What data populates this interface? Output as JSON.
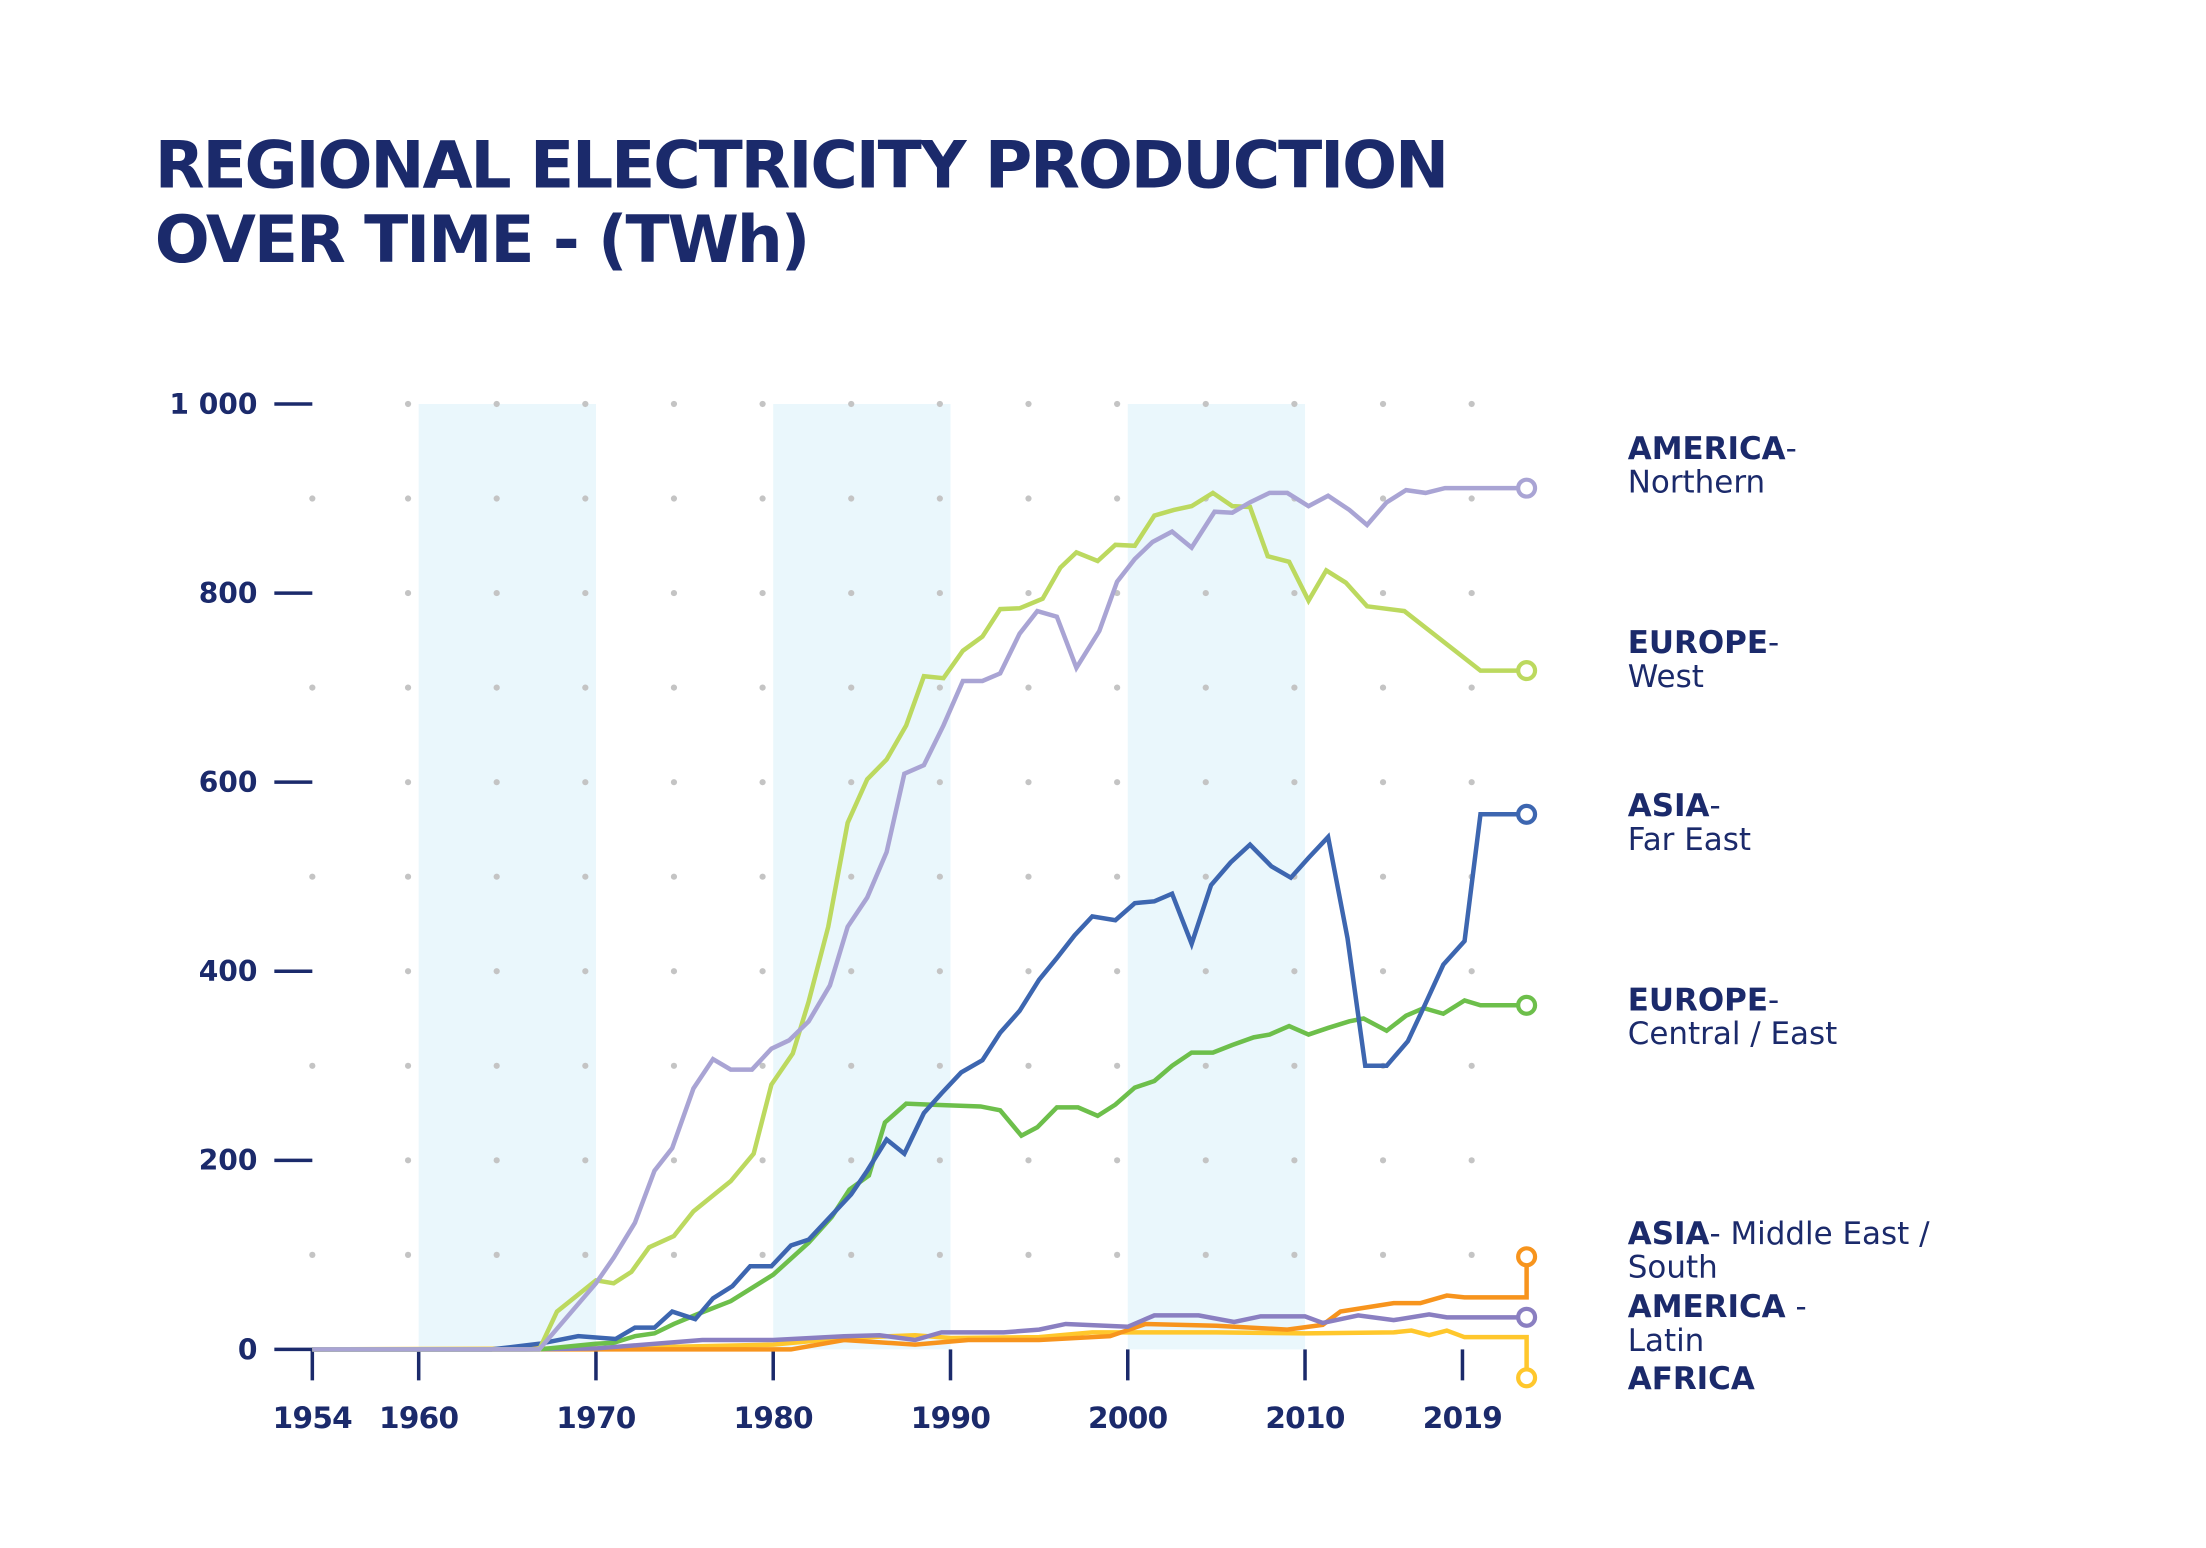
{
  "chart_data": {
    "type": "line",
    "title_lines": [
      "REGIONAL ELECTRICITY PRODUCTION",
      "OVER TIME  - (TWh)"
    ],
    "xlabel": "",
    "ylabel": "",
    "xlim": [
      1954,
      2019
    ],
    "ylim": [
      0,
      1000
    ],
    "x_ticks": [
      1954,
      1960,
      1970,
      1980,
      1990,
      2000,
      2010,
      2019
    ],
    "y_ticks": [
      0,
      200,
      400,
      600,
      800,
      1000
    ],
    "y_tick_labels": [
      "0",
      "200",
      "400",
      "600",
      "800",
      "1 000"
    ],
    "grid": "dotted",
    "shaded_decades": [
      [
        1960,
        1970
      ],
      [
        1980,
        1990
      ],
      [
        2000,
        2010
      ]
    ],
    "legend_placement": "right (direct labels at line ends)",
    "series": [
      {
        "name": "AMERICA- Northern",
        "label_bold": "AMERICA",
        "label_rest": "-",
        "label_line2": "Northern",
        "color": "#a9a4d4",
        "end_value": 911,
        "points": [
          [
            1954,
            0
          ],
          [
            1966.8,
            0
          ],
          [
            1970,
            70
          ],
          [
            1971,
            97
          ],
          [
            1972.2,
            134
          ],
          [
            1973.3,
            189
          ],
          [
            1974.3,
            213
          ],
          [
            1975.5,
            276
          ],
          [
            1976.6,
            307
          ],
          [
            1977.6,
            296
          ],
          [
            1978.8,
            296
          ],
          [
            1979.9,
            318
          ],
          [
            1980.9,
            327
          ],
          [
            1982,
            347
          ],
          [
            1983.2,
            385
          ],
          [
            1984.2,
            447
          ],
          [
            1985.3,
            478
          ],
          [
            1986.4,
            526
          ],
          [
            1987.4,
            609
          ],
          [
            1988.5,
            618
          ],
          [
            1989.6,
            660
          ],
          [
            1990.7,
            707
          ],
          [
            1991.8,
            707
          ],
          [
            1992.8,
            715
          ],
          [
            1993.9,
            757
          ],
          [
            1994.9,
            781
          ],
          [
            1996,
            775
          ],
          [
            1997.1,
            721
          ],
          [
            1998.4,
            760
          ],
          [
            1999.4,
            812
          ],
          [
            2000.4,
            836
          ],
          [
            2001.4,
            854
          ],
          [
            2002.5,
            865
          ],
          [
            2003.6,
            848
          ],
          [
            2004.9,
            886
          ],
          [
            2005.9,
            885
          ],
          [
            2006.9,
            896
          ],
          [
            2008,
            906
          ],
          [
            2009,
            906
          ],
          [
            2010.2,
            892
          ],
          [
            2011.3,
            903
          ],
          [
            2012.5,
            888
          ],
          [
            2013.5,
            872
          ],
          [
            2014.6,
            896
          ],
          [
            2015.7,
            909
          ],
          [
            2016.8,
            906
          ],
          [
            2017.9,
            911
          ],
          [
            2019.9,
            911
          ],
          [
            2022.5,
            911
          ]
        ]
      },
      {
        "name": "EUROPE- West",
        "label_bold": "EUROPE",
        "label_rest": "-",
        "label_line2": "West",
        "color": "#bcd95f",
        "end_value": 718,
        "points": [
          [
            1954,
            0
          ],
          [
            1966.8,
            0
          ],
          [
            1967.8,
            40
          ],
          [
            1970,
            73
          ],
          [
            1971,
            70
          ],
          [
            1972,
            82
          ],
          [
            1973,
            108
          ],
          [
            1974.4,
            120
          ],
          [
            1975.5,
            146
          ],
          [
            1977.6,
            178
          ],
          [
            1978.9,
            207
          ],
          [
            1979.9,
            280
          ],
          [
            1981.1,
            313
          ],
          [
            1982,
            368
          ],
          [
            1983.1,
            447
          ],
          [
            1984.2,
            557
          ],
          [
            1985.3,
            603
          ],
          [
            1986.4,
            624
          ],
          [
            1987.5,
            660
          ],
          [
            1988.5,
            712
          ],
          [
            1989.6,
            710
          ],
          [
            1990.7,
            739
          ],
          [
            1991.8,
            754
          ],
          [
            1992.8,
            783
          ],
          [
            1993.9,
            784
          ],
          [
            1995.2,
            794
          ],
          [
            1996.2,
            827
          ],
          [
            1997.1,
            843
          ],
          [
            1998.3,
            834
          ],
          [
            1999.3,
            851
          ],
          [
            2000.4,
            850
          ],
          [
            2001.5,
            882
          ],
          [
            2002.6,
            888
          ],
          [
            2003.6,
            892
          ],
          [
            2004.8,
            906
          ],
          [
            2005.9,
            892
          ],
          [
            2006.9,
            891
          ],
          [
            2007.9,
            839
          ],
          [
            2009.1,
            833
          ],
          [
            2010.2,
            792
          ],
          [
            2011.2,
            824
          ],
          [
            2012.3,
            811
          ],
          [
            2013.5,
            786
          ],
          [
            2015.6,
            781
          ],
          [
            2019.9,
            718
          ],
          [
            2022.5,
            718
          ]
        ]
      },
      {
        "name": "ASIA- Far East",
        "label_bold": "ASIA",
        "label_rest": "-",
        "label_line2": "Far East",
        "color": "#3d66b0",
        "end_value": 566,
        "points": [
          [
            1954,
            0
          ],
          [
            1964.1,
            0
          ],
          [
            1966.8,
            6
          ],
          [
            1969,
            14
          ],
          [
            1971.1,
            11
          ],
          [
            1972.2,
            23
          ],
          [
            1973.3,
            23
          ],
          [
            1974.3,
            40
          ],
          [
            1975.6,
            32
          ],
          [
            1976.6,
            54
          ],
          [
            1977.7,
            67
          ],
          [
            1978.7,
            88
          ],
          [
            1979.9,
            88
          ],
          [
            1981,
            110
          ],
          [
            1982,
            116
          ],
          [
            1983.2,
            140
          ],
          [
            1984.4,
            164
          ],
          [
            1985.3,
            189
          ],
          [
            1986.4,
            222
          ],
          [
            1987.4,
            207
          ],
          [
            1988.5,
            250
          ],
          [
            1989.5,
            271
          ],
          [
            1990.6,
            293
          ],
          [
            1991.8,
            306
          ],
          [
            1992.8,
            335
          ],
          [
            1993.9,
            358
          ],
          [
            1995,
            391
          ],
          [
            1996,
            414
          ],
          [
            1997,
            438
          ],
          [
            1998,
            458
          ],
          [
            1999.3,
            454
          ],
          [
            2000.4,
            472
          ],
          [
            2001.5,
            474
          ],
          [
            2002.5,
            482
          ],
          [
            2003.6,
            429
          ],
          [
            2004.7,
            491
          ],
          [
            2005.8,
            515
          ],
          [
            2006.9,
            534
          ],
          [
            2008.1,
            511
          ],
          [
            2009.2,
            499
          ],
          [
            2010.2,
            520
          ],
          [
            2011.3,
            542
          ],
          [
            2012.4,
            435
          ],
          [
            2013.4,
            300
          ],
          [
            2014.6,
            300
          ],
          [
            2015.8,
            326
          ],
          [
            2016.8,
            366
          ],
          [
            2017.8,
            407
          ],
          [
            2019,
            432
          ],
          [
            2019.9,
            566
          ],
          [
            2022.5,
            566
          ]
        ]
      },
      {
        "name": "EUROPE- Central / East",
        "label_bold": "EUROPE",
        "label_rest": "-",
        "label_line2": "Central / East",
        "color": "#6dbf4b",
        "end_value": 364,
        "points": [
          [
            1954,
            0
          ],
          [
            1966.8,
            0
          ],
          [
            1970,
            6
          ],
          [
            1971,
            7
          ],
          [
            1972.2,
            14
          ],
          [
            1973.3,
            17
          ],
          [
            1974.4,
            27
          ],
          [
            1975.7,
            37
          ],
          [
            1977.6,
            51
          ],
          [
            1978.8,
            65
          ],
          [
            1980,
            79
          ],
          [
            1982,
            113
          ],
          [
            1983.3,
            140
          ],
          [
            1984.3,
            169
          ],
          [
            1985.4,
            184
          ],
          [
            1986.3,
            240
          ],
          [
            1987.5,
            260
          ],
          [
            1988.8,
            259
          ],
          [
            1991.7,
            257
          ],
          [
            1992.8,
            253
          ],
          [
            1994,
            226
          ],
          [
            1994.9,
            235
          ],
          [
            1996,
            256
          ],
          [
            1997.2,
            256
          ],
          [
            1998.3,
            247
          ],
          [
            1999.3,
            259
          ],
          [
            2000.4,
            277
          ],
          [
            2001.5,
            284
          ],
          [
            2002.5,
            300
          ],
          [
            2003.6,
            314
          ],
          [
            2004.8,
            314
          ],
          [
            2005.9,
            322
          ],
          [
            2007.1,
            330
          ],
          [
            2008,
            333
          ],
          [
            2009.1,
            342
          ],
          [
            2010.2,
            333
          ],
          [
            2011.3,
            340
          ],
          [
            2012.5,
            347
          ],
          [
            2013.3,
            350
          ],
          [
            2014.6,
            337
          ],
          [
            2015.7,
            353
          ],
          [
            2016.7,
            361
          ],
          [
            2017.8,
            355
          ],
          [
            2019,
            369
          ],
          [
            2019.9,
            364
          ],
          [
            2022.5,
            364
          ]
        ]
      },
      {
        "name": "ASIA- Middle East / South",
        "label_bold": "ASIA",
        "label_rest": "- Middle East /",
        "label_line2": "South",
        "color": "#f7941d",
        "end_value": 98,
        "points": [
          [
            1954,
            0
          ],
          [
            1970,
            0
          ],
          [
            1981,
            0
          ],
          [
            1984,
            10
          ],
          [
            1988,
            5
          ],
          [
            1991,
            10
          ],
          [
            1995,
            10
          ],
          [
            1999,
            14
          ],
          [
            2001,
            27
          ],
          [
            2005,
            25
          ],
          [
            2009,
            21
          ],
          [
            2011,
            26
          ],
          [
            2012,
            40
          ],
          [
            2015,
            49
          ],
          [
            2016.5,
            49
          ],
          [
            2018,
            57
          ],
          [
            2019,
            55
          ],
          [
            2022.5,
            55
          ],
          [
            2022.5,
            98
          ]
        ]
      },
      {
        "name": "AMERICA - Latin",
        "label_bold": "AMERICA",
        "label_rest": " -",
        "label_line2": "Latin",
        "color": "#8a7fc1",
        "end_value": 34,
        "points": [
          [
            1954,
            0
          ],
          [
            1966,
            0
          ],
          [
            1970,
            1
          ],
          [
            1976,
            10
          ],
          [
            1980,
            10
          ],
          [
            1984,
            14
          ],
          [
            1986,
            15
          ],
          [
            1988,
            10
          ],
          [
            1989.5,
            18
          ],
          [
            1993,
            18
          ],
          [
            1995,
            21
          ],
          [
            1996.5,
            27
          ],
          [
            2000,
            24
          ],
          [
            2001.5,
            36
          ],
          [
            2004,
            36
          ],
          [
            2006,
            29
          ],
          [
            2007.5,
            35
          ],
          [
            2010,
            35
          ],
          [
            2011,
            28
          ],
          [
            2013,
            36
          ],
          [
            2015,
            31
          ],
          [
            2017,
            37
          ],
          [
            2018,
            34
          ],
          [
            2022.5,
            34
          ]
        ]
      },
      {
        "name": "AFRICA",
        "label_bold": "AFRICA",
        "label_rest": "",
        "label_line2": "",
        "color": "#ffc72c",
        "end_value": -30,
        "points": [
          [
            1954,
            0
          ],
          [
            1970,
            1
          ],
          [
            1980,
            5
          ],
          [
            1984,
            12
          ],
          [
            1988,
            15
          ],
          [
            1990,
            12
          ],
          [
            1995,
            13
          ],
          [
            1998,
            18
          ],
          [
            2000,
            18
          ],
          [
            2005,
            18
          ],
          [
            2010,
            17
          ],
          [
            2015,
            18
          ],
          [
            2016,
            20
          ],
          [
            2017,
            15
          ],
          [
            2018,
            20
          ],
          [
            2019,
            13
          ],
          [
            2022.5,
            13
          ],
          [
            2022.5,
            -30
          ]
        ]
      }
    ]
  },
  "colors": {
    "text": "#1b2a6b",
    "band": "#eaf7fc",
    "grid_dot": "#c4c4c4"
  }
}
